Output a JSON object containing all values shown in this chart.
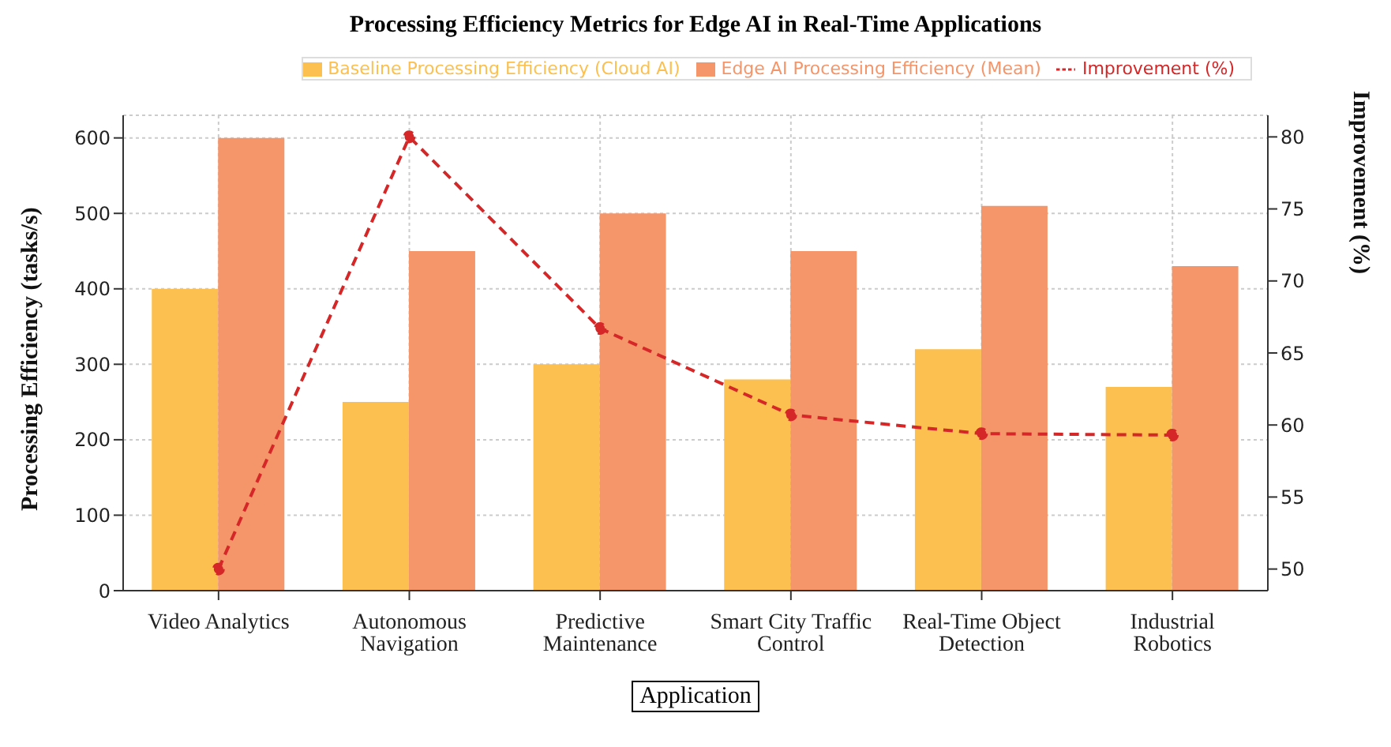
{
  "chart_data": {
    "type": "bar",
    "title": "Processing Efficiency Metrics for Edge AI in Real-Time Applications",
    "xlabel": "Application",
    "ylabel": "Processing Efficiency (tasks/s)",
    "y2label": "Improvement (%)",
    "categories": [
      "Video Analytics",
      "Autonomous Navigation",
      "Predictive Maintenance",
      "Smart City Traffic Control",
      "Real-Time Object Detection",
      "Industrial Robotics"
    ],
    "series": [
      {
        "name": "Baseline Processing Efficiency (Cloud AI)",
        "color": "#fbc04f",
        "values": [
          400,
          250,
          300,
          280,
          320,
          270
        ]
      },
      {
        "name": "Edge AI Processing Efficiency (Mean)",
        "color": "#f4956a",
        "values": [
          600,
          450,
          500,
          450,
          510,
          430
        ]
      },
      {
        "name": "Improvement (%)",
        "type": "line",
        "axis": "y2",
        "color": "#d62728",
        "values": [
          50,
          80,
          66.7,
          60.7,
          59.4,
          59.3
        ],
        "marker": "circle",
        "line_style": "dashed"
      }
    ],
    "ylim": [
      0,
      630
    ],
    "yticks": [
      0,
      100,
      200,
      300,
      400,
      500,
      600
    ],
    "y2lim": [
      48.5,
      81.5
    ],
    "y2ticks": [
      50,
      55,
      60,
      65,
      70,
      75,
      80
    ],
    "grid": true,
    "legend": "top right"
  }
}
